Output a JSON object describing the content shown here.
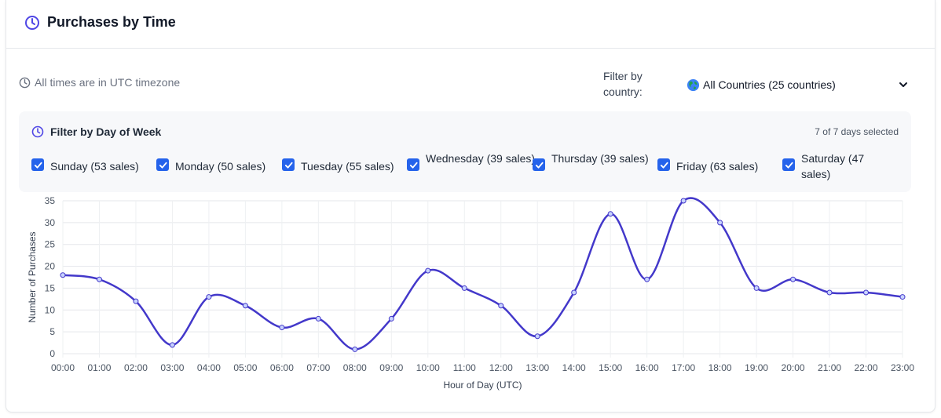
{
  "header": {
    "title": "Purchases by Time",
    "icon": "clock-icon"
  },
  "timezone_note": "All times are in UTC timezone",
  "country_filter": {
    "label": "Filter by country:",
    "selected": "All Countries (25 countries)",
    "icon": "globe-icon"
  },
  "day_filter": {
    "title": "Filter by Day of Week",
    "selected_count": "7 of 7 days selected",
    "days": [
      {
        "label": "Sunday (53 sales)",
        "checked": true
      },
      {
        "label": "Monday (50 sales)",
        "checked": true
      },
      {
        "label": "Tuesday (55 sales)",
        "checked": true
      },
      {
        "label": "Wednesday (39 sales)",
        "checked": true
      },
      {
        "label": "Thursday (39 sales)",
        "checked": true
      },
      {
        "label": "Friday (63 sales)",
        "checked": true
      },
      {
        "label": "Saturday (47 sales)",
        "checked": true
      }
    ]
  },
  "colors": {
    "accent": "#4f46e5",
    "checkbox": "#2563eb",
    "line": "#4338ca"
  },
  "chart_data": {
    "type": "line",
    "categories": [
      "00:00",
      "01:00",
      "02:00",
      "03:00",
      "04:00",
      "05:00",
      "06:00",
      "07:00",
      "08:00",
      "09:00",
      "10:00",
      "11:00",
      "12:00",
      "13:00",
      "14:00",
      "15:00",
      "16:00",
      "17:00",
      "18:00",
      "19:00",
      "20:00",
      "21:00",
      "22:00",
      "23:00"
    ],
    "series": [
      {
        "values": [
          18,
          17,
          12,
          2,
          13,
          11,
          6,
          8,
          1,
          8,
          19,
          15,
          11,
          4,
          14,
          32,
          17,
          35,
          30,
          15,
          17,
          14,
          14,
          13
        ]
      }
    ],
    "xlabel": "Hour of Day (UTC)",
    "ylabel": "Number of Purchases",
    "ylim": [
      0,
      35
    ],
    "yticks": [
      0,
      5,
      10,
      15,
      20,
      25,
      30,
      35
    ],
    "grid": true
  }
}
